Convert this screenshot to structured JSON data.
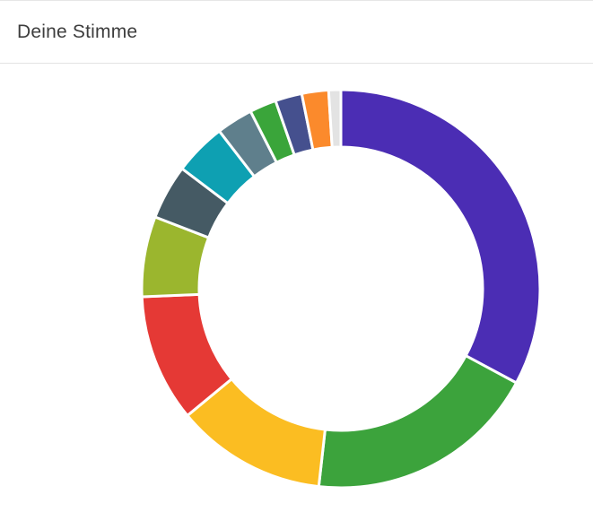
{
  "header": {
    "title": "Deine Stimme"
  },
  "chart_data": {
    "type": "pie",
    "variant": "donut",
    "legend": "none",
    "slices": [
      {
        "value": 33.3,
        "color": "#4b2db4"
      },
      {
        "value": 19.2,
        "color": "#3ca33c"
      },
      {
        "value": 12.4,
        "color": "#fbbd22"
      },
      {
        "value": 10.5,
        "color": "#e53935"
      },
      {
        "value": 6.6,
        "color": "#9bb62e"
      },
      {
        "value": 4.5,
        "color": "#455a64"
      },
      {
        "value": 4.3,
        "color": "#0ea0b2"
      },
      {
        "value": 3.0,
        "color": "#5f7f8c"
      },
      {
        "value": 2.2,
        "color": "#3aa53a"
      },
      {
        "value": 2.2,
        "color": "#45508e"
      },
      {
        "value": 2.2,
        "color": "#fb8a2c"
      },
      {
        "value": 1.0,
        "color": "#e3e3e3"
      }
    ]
  }
}
